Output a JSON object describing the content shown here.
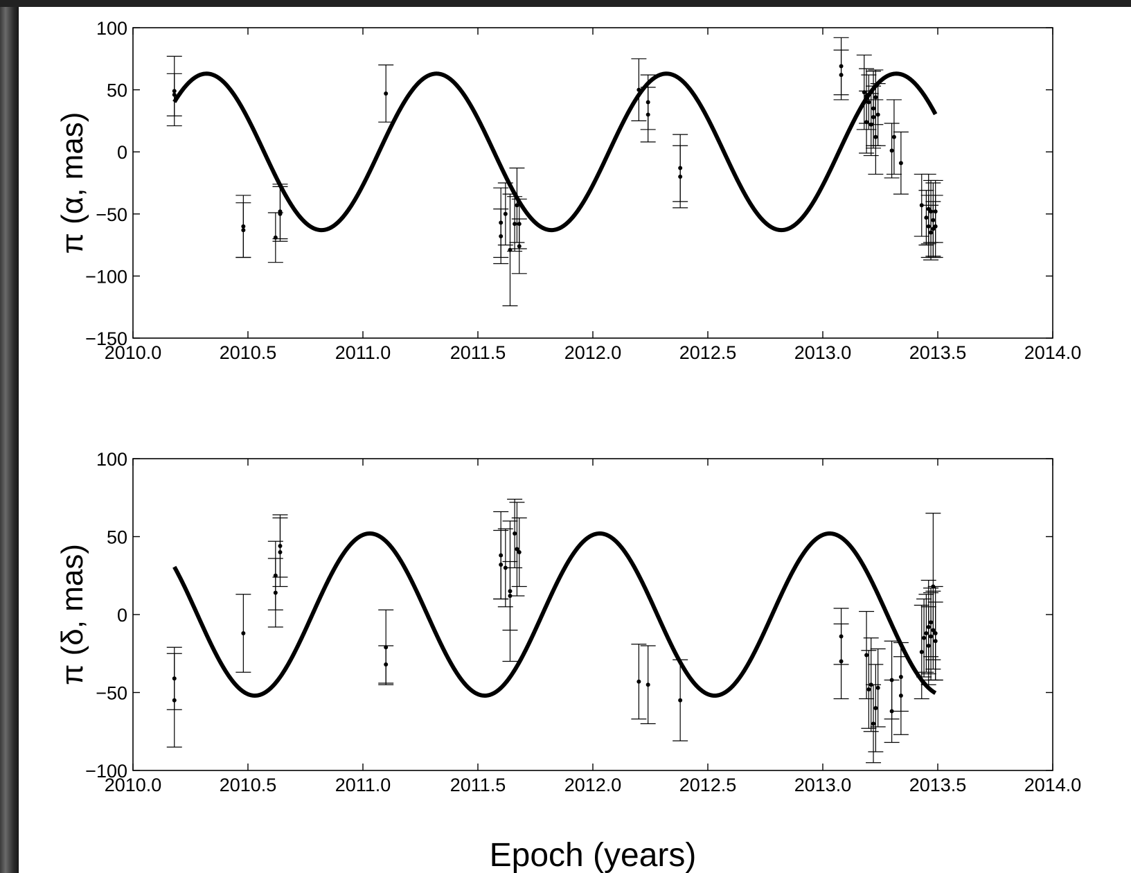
{
  "chart_data": [
    {
      "type": "scatter",
      "ylabel": "π (α, mas)",
      "xlabel": "",
      "xlim": [
        2010.0,
        2014.0
      ],
      "ylim": [
        -150,
        100
      ],
      "xticks": [
        "2010.0",
        "2010.5",
        "2011.0",
        "2011.5",
        "2012.0",
        "2012.5",
        "2013.0",
        "2013.5",
        "2014.0"
      ],
      "yticks": [
        "100",
        "50",
        "0",
        "−50",
        "−100",
        "−150"
      ],
      "yticks_values": [
        100,
        50,
        0,
        -50,
        -100,
        -150
      ],
      "xticks_values": [
        2010.0,
        2010.5,
        2011.0,
        2011.5,
        2012.0,
        2012.5,
        2013.0,
        2013.5,
        2014.0
      ],
      "model": {
        "amplitude": 63,
        "period": 1.0,
        "phase_zero_epoch": 2010.82
      },
      "series": [
        {
          "values": [
            {
              "x": 2010.18,
              "y": 49,
              "err": 28
            },
            {
              "x": 2010.18,
              "y": 46,
              "err": 17
            },
            {
              "x": 2010.48,
              "y": -60,
              "err": 25
            },
            {
              "x": 2010.48,
              "y": -63,
              "err": 22
            },
            {
              "x": 2010.62,
              "y": -69,
              "err": 20
            },
            {
              "x": 2010.64,
              "y": -50,
              "err": 22
            },
            {
              "x": 2010.64,
              "y": -48,
              "err": 22
            },
            {
              "x": 2011.1,
              "y": 47,
              "err": 23
            },
            {
              "x": 2011.6,
              "y": -57,
              "err": 28
            },
            {
              "x": 2011.6,
              "y": -68,
              "err": 22
            },
            {
              "x": 2011.62,
              "y": -50,
              "err": 25
            },
            {
              "x": 2011.64,
              "y": -79,
              "err": 45
            },
            {
              "x": 2011.66,
              "y": -58,
              "err": 22
            },
            {
              "x": 2011.67,
              "y": -43,
              "err": 30
            },
            {
              "x": 2011.68,
              "y": -58,
              "err": 20
            },
            {
              "x": 2011.68,
              "y": -76,
              "err": 22
            },
            {
              "x": 2012.2,
              "y": 50,
              "err": 25
            },
            {
              "x": 2012.24,
              "y": 40,
              "err": 22
            },
            {
              "x": 2012.24,
              "y": 30,
              "err": 22
            },
            {
              "x": 2012.38,
              "y": -13,
              "err": 27
            },
            {
              "x": 2012.38,
              "y": -20,
              "err": 25
            },
            {
              "x": 2013.08,
              "y": 69,
              "err": 23
            },
            {
              "x": 2013.08,
              "y": 62,
              "err": 20
            },
            {
              "x": 2013.18,
              "y": 48,
              "err": 30
            },
            {
              "x": 2013.19,
              "y": 45,
              "err": 22
            },
            {
              "x": 2013.19,
              "y": 24,
              "err": 25
            },
            {
              "x": 2013.2,
              "y": 40,
              "err": 22
            },
            {
              "x": 2013.21,
              "y": 22,
              "err": 25
            },
            {
              "x": 2013.22,
              "y": 35,
              "err": 30
            },
            {
              "x": 2013.22,
              "y": 28,
              "err": 25
            },
            {
              "x": 2013.23,
              "y": 44,
              "err": 22
            },
            {
              "x": 2013.23,
              "y": 12,
              "err": 30
            },
            {
              "x": 2013.24,
              "y": 30,
              "err": 25
            },
            {
              "x": 2013.3,
              "y": 1,
              "err": 22
            },
            {
              "x": 2013.31,
              "y": 12,
              "err": 30
            },
            {
              "x": 2013.34,
              "y": -9,
              "err": 25
            },
            {
              "x": 2013.43,
              "y": -43,
              "err": 25
            },
            {
              "x": 2013.45,
              "y": -53,
              "err": 22
            },
            {
              "x": 2013.46,
              "y": -46,
              "err": 28
            },
            {
              "x": 2013.46,
              "y": -60,
              "err": 25
            },
            {
              "x": 2013.47,
              "y": -65,
              "err": 22
            },
            {
              "x": 2013.47,
              "y": -48,
              "err": 25
            },
            {
              "x": 2013.48,
              "y": -55,
              "err": 30
            },
            {
              "x": 2013.48,
              "y": -62,
              "err": 22
            },
            {
              "x": 2013.49,
              "y": -48,
              "err": 25
            },
            {
              "x": 2013.49,
              "y": -60,
              "err": 25
            }
          ]
        }
      ]
    },
    {
      "type": "scatter",
      "ylabel": "π (δ, mas)",
      "xlabel": "Epoch (years)",
      "xlim": [
        2010.0,
        2014.0
      ],
      "ylim": [
        -100,
        100
      ],
      "xticks": [
        "2010.0",
        "2010.5",
        "2011.0",
        "2011.5",
        "2012.0",
        "2012.5",
        "2013.0",
        "2013.5",
        "2014.0"
      ],
      "yticks": [
        "100",
        "50",
        "0",
        "−50",
        "−100"
      ],
      "yticks_values": [
        100,
        50,
        0,
        -50,
        -100
      ],
      "xticks_values": [
        2010.0,
        2010.5,
        2011.0,
        2011.5,
        2012.0,
        2012.5,
        2013.0,
        2013.5,
        2014.0
      ],
      "model": {
        "amplitude": 52,
        "period": 1.0,
        "phase_zero_epoch": 2010.53
      },
      "series": [
        {
          "values": [
            {
              "x": 2010.18,
              "y": -41,
              "err": 20
            },
            {
              "x": 2010.18,
              "y": -55,
              "err": 30
            },
            {
              "x": 2010.48,
              "y": -12,
              "err": 25
            },
            {
              "x": 2010.62,
              "y": 14,
              "err": 22
            },
            {
              "x": 2010.62,
              "y": 25,
              "err": 22
            },
            {
              "x": 2010.64,
              "y": 44,
              "err": 20
            },
            {
              "x": 2010.64,
              "y": 40,
              "err": 22
            },
            {
              "x": 2011.1,
              "y": -21,
              "err": 24
            },
            {
              "x": 2011.1,
              "y": -32,
              "err": 12
            },
            {
              "x": 2011.6,
              "y": 38,
              "err": 28
            },
            {
              "x": 2011.6,
              "y": 32,
              "err": 22
            },
            {
              "x": 2011.62,
              "y": 30,
              "err": 25
            },
            {
              "x": 2011.64,
              "y": 15,
              "err": 45
            },
            {
              "x": 2011.64,
              "y": 12,
              "err": 22
            },
            {
              "x": 2011.66,
              "y": 52,
              "err": 22
            },
            {
              "x": 2011.67,
              "y": 42,
              "err": 30
            },
            {
              "x": 2011.68,
              "y": 40,
              "err": 22
            },
            {
              "x": 2012.2,
              "y": -43,
              "err": 24
            },
            {
              "x": 2012.24,
              "y": -45,
              "err": 25
            },
            {
              "x": 2012.38,
              "y": -55,
              "err": 26
            },
            {
              "x": 2013.08,
              "y": -14,
              "err": 18
            },
            {
              "x": 2013.08,
              "y": -30,
              "err": 24
            },
            {
              "x": 2013.19,
              "y": -26,
              "err": 28
            },
            {
              "x": 2013.2,
              "y": -48,
              "err": 25
            },
            {
              "x": 2013.21,
              "y": -45,
              "err": 30
            },
            {
              "x": 2013.22,
              "y": -70,
              "err": 25
            },
            {
              "x": 2013.23,
              "y": -60,
              "err": 28
            },
            {
              "x": 2013.24,
              "y": -47,
              "err": 25
            },
            {
              "x": 2013.3,
              "y": -42,
              "err": 25
            },
            {
              "x": 2013.3,
              "y": -62,
              "err": 20
            },
            {
              "x": 2013.34,
              "y": -40,
              "err": 22
            },
            {
              "x": 2013.34,
              "y": -52,
              "err": 25
            },
            {
              "x": 2013.43,
              "y": -24,
              "err": 30
            },
            {
              "x": 2013.44,
              "y": -15,
              "err": 25
            },
            {
              "x": 2013.45,
              "y": -12,
              "err": 25
            },
            {
              "x": 2013.46,
              "y": -8,
              "err": 30
            },
            {
              "x": 2013.46,
              "y": -20,
              "err": 25
            },
            {
              "x": 2013.47,
              "y": -5,
              "err": 22
            },
            {
              "x": 2013.47,
              "y": -14,
              "err": 28
            },
            {
              "x": 2013.48,
              "y": 18,
              "err": 47
            },
            {
              "x": 2013.48,
              "y": -10,
              "err": 25
            },
            {
              "x": 2013.49,
              "y": -17,
              "err": 25
            },
            {
              "x": 2013.49,
              "y": -12,
              "err": 30
            }
          ]
        }
      ]
    }
  ]
}
